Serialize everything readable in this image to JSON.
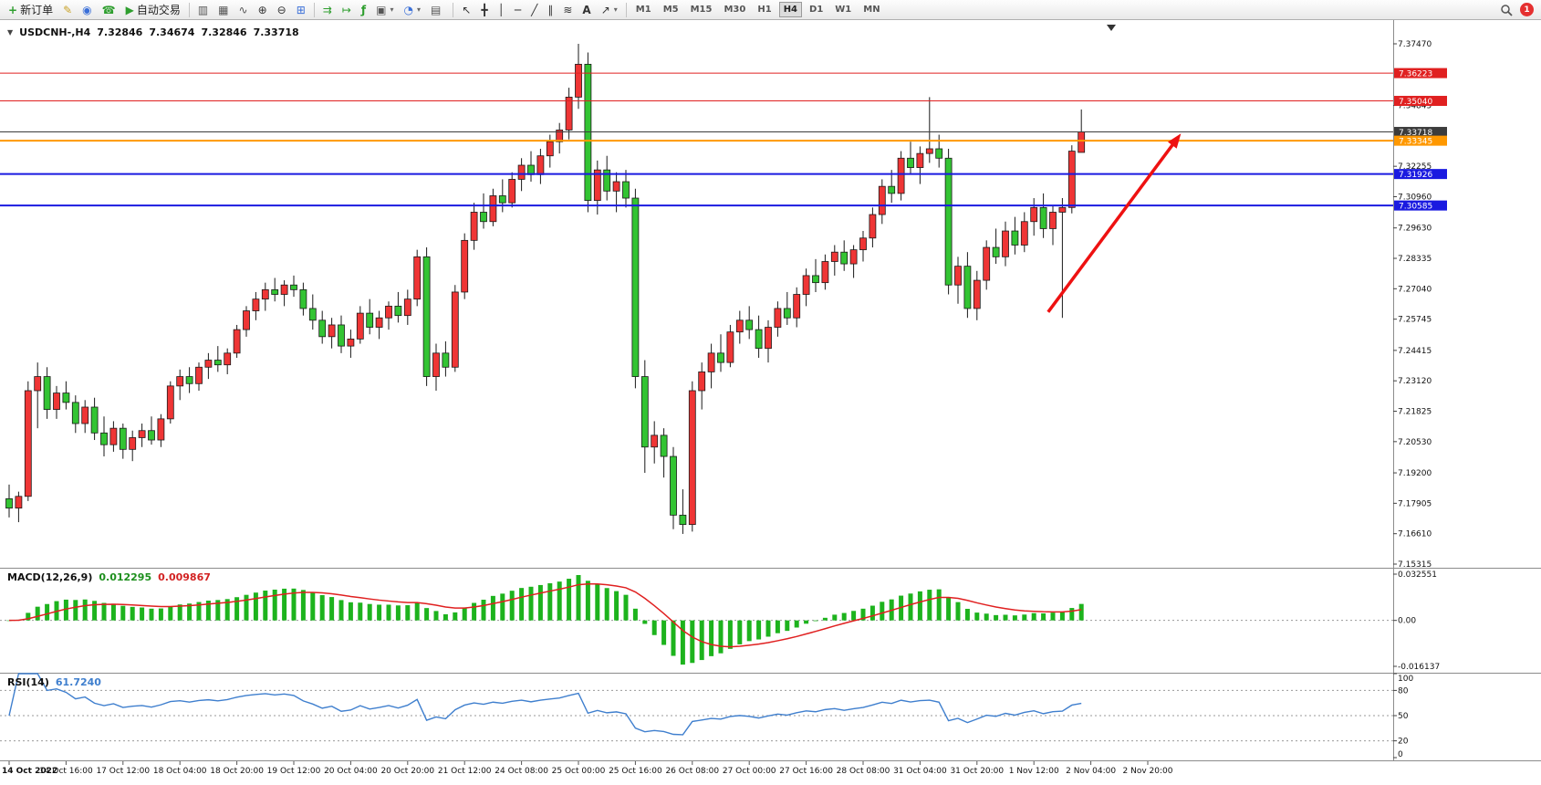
{
  "toolbar": {
    "new_order": "新订单",
    "autotrading": "自动交易",
    "timeframes": [
      "M1",
      "M5",
      "M15",
      "M30",
      "H1",
      "H4",
      "D1",
      "W1",
      "MN"
    ],
    "active_timeframe": "H4",
    "notification_count": "1"
  },
  "icons": {
    "new_order": "+",
    "metaeditor": "✎",
    "community": "◉",
    "support": "☎",
    "autotrading": "▶",
    "bar_chart": "▥",
    "candle_chart": "▦",
    "line_chart": "∿",
    "zoom_in": "⊕",
    "zoom_out": "⊖",
    "tile_windows": "⊞",
    "autoscroll": "⇉",
    "chart_shift": "↦",
    "indicators": "ƒ",
    "new_chart": "▣",
    "profiles": "◔",
    "templates": "▤",
    "cursor": "↖",
    "crosshair": "╋",
    "vline": "│",
    "hline": "─",
    "trendline": "╱",
    "channel": "∥",
    "fibonacci": "≋",
    "text_tool": "A",
    "arrows_tool": "↗",
    "dropdown": "▾",
    "chart_menu": "▼"
  },
  "chart": {
    "symbol_period": "USDCNH-,H4",
    "open": "7.32846",
    "high": "7.34674",
    "low": "7.32846",
    "close": "7.33718"
  },
  "indicators": {
    "macd_name": "MACD(12,26,9)",
    "macd_main": "0.012295",
    "macd_signal": "0.009867",
    "rsi_name": "RSI(14)",
    "rsi_value": "61.7240"
  },
  "chart_data": {
    "type": "candlestick",
    "symbol": "USDCNH-",
    "timeframe": "H4",
    "ylim": [
      7.15315,
      7.3747
    ],
    "up_color": "#ef3535",
    "down_color": "#33c433",
    "candles": [
      [
        7.181,
        7.187,
        7.173,
        7.177
      ],
      [
        7.177,
        7.184,
        7.171,
        7.182
      ],
      [
        7.182,
        7.231,
        7.18,
        7.227
      ],
      [
        7.227,
        7.239,
        7.211,
        7.233
      ],
      [
        7.233,
        7.237,
        7.215,
        7.219
      ],
      [
        7.219,
        7.229,
        7.215,
        7.226
      ],
      [
        7.226,
        7.231,
        7.219,
        7.222
      ],
      [
        7.222,
        7.225,
        7.209,
        7.213
      ],
      [
        7.213,
        7.223,
        7.209,
        7.22
      ],
      [
        7.22,
        7.224,
        7.206,
        7.209
      ],
      [
        7.209,
        7.216,
        7.199,
        7.204
      ],
      [
        7.204,
        7.214,
        7.201,
        7.211
      ],
      [
        7.211,
        7.213,
        7.198,
        7.202
      ],
      [
        7.202,
        7.21,
        7.197,
        7.207
      ],
      [
        7.207,
        7.213,
        7.203,
        7.21
      ],
      [
        7.21,
        7.216,
        7.204,
        7.206
      ],
      [
        7.206,
        7.217,
        7.203,
        7.215
      ],
      [
        7.215,
        7.231,
        7.213,
        7.229
      ],
      [
        7.229,
        7.236,
        7.223,
        7.233
      ],
      [
        7.233,
        7.237,
        7.226,
        7.23
      ],
      [
        7.23,
        7.239,
        7.227,
        7.237
      ],
      [
        7.237,
        7.243,
        7.232,
        7.24
      ],
      [
        7.24,
        7.246,
        7.235,
        7.238
      ],
      [
        7.238,
        7.245,
        7.234,
        7.243
      ],
      [
        7.243,
        7.255,
        7.241,
        7.253
      ],
      [
        7.253,
        7.263,
        7.25,
        7.261
      ],
      [
        7.261,
        7.269,
        7.257,
        7.266
      ],
      [
        7.266,
        7.273,
        7.261,
        7.27
      ],
      [
        7.27,
        7.275,
        7.265,
        7.268
      ],
      [
        7.268,
        7.274,
        7.263,
        7.272
      ],
      [
        7.272,
        7.276,
        7.267,
        7.27
      ],
      [
        7.27,
        7.273,
        7.259,
        7.262
      ],
      [
        7.262,
        7.268,
        7.253,
        7.257
      ],
      [
        7.257,
        7.261,
        7.247,
        7.25
      ],
      [
        7.25,
        7.258,
        7.245,
        7.255
      ],
      [
        7.255,
        7.259,
        7.243,
        7.246
      ],
      [
        7.246,
        7.253,
        7.241,
        7.249
      ],
      [
        7.249,
        7.263,
        7.247,
        7.26
      ],
      [
        7.26,
        7.266,
        7.251,
        7.254
      ],
      [
        7.254,
        7.261,
        7.249,
        7.258
      ],
      [
        7.258,
        7.265,
        7.253,
        7.263
      ],
      [
        7.263,
        7.269,
        7.256,
        7.259
      ],
      [
        7.259,
        7.27,
        7.255,
        7.266
      ],
      [
        7.266,
        7.287,
        7.263,
        7.284
      ],
      [
        7.284,
        7.288,
        7.229,
        7.233
      ],
      [
        7.233,
        7.247,
        7.227,
        7.243
      ],
      [
        7.243,
        7.248,
        7.233,
        7.237
      ],
      [
        7.237,
        7.272,
        7.235,
        7.269
      ],
      [
        7.269,
        7.294,
        7.266,
        7.291
      ],
      [
        7.291,
        7.307,
        7.287,
        7.303
      ],
      [
        7.303,
        7.311,
        7.296,
        7.299
      ],
      [
        7.299,
        7.313,
        7.297,
        7.31
      ],
      [
        7.31,
        7.317,
        7.303,
        7.307
      ],
      [
        7.307,
        7.32,
        7.305,
        7.317
      ],
      [
        7.317,
        7.326,
        7.312,
        7.323
      ],
      [
        7.323,
        7.329,
        7.316,
        7.319
      ],
      [
        7.319,
        7.33,
        7.315,
        7.327
      ],
      [
        7.327,
        7.336,
        7.322,
        7.333
      ],
      [
        7.333,
        7.341,
        7.328,
        7.338
      ],
      [
        7.338,
        7.356,
        7.334,
        7.352
      ],
      [
        7.352,
        7.3747,
        7.347,
        7.366
      ],
      [
        7.366,
        7.371,
        7.303,
        7.308
      ],
      [
        7.308,
        7.325,
        7.302,
        7.321
      ],
      [
        7.321,
        7.327,
        7.308,
        7.312
      ],
      [
        7.312,
        7.32,
        7.303,
        7.316
      ],
      [
        7.316,
        7.321,
        7.305,
        7.309
      ],
      [
        7.309,
        7.313,
        7.228,
        7.233
      ],
      [
        7.233,
        7.24,
        7.192,
        7.203
      ],
      [
        7.203,
        7.214,
        7.196,
        7.208
      ],
      [
        7.208,
        7.211,
        7.19,
        7.199
      ],
      [
        7.199,
        7.203,
        7.168,
        7.174
      ],
      [
        7.174,
        7.185,
        7.166,
        7.17
      ],
      [
        7.17,
        7.231,
        7.167,
        7.227
      ],
      [
        7.227,
        7.239,
        7.219,
        7.235
      ],
      [
        7.235,
        7.247,
        7.228,
        7.243
      ],
      [
        7.243,
        7.251,
        7.235,
        7.239
      ],
      [
        7.239,
        7.255,
        7.237,
        7.252
      ],
      [
        7.252,
        7.261,
        7.247,
        7.257
      ],
      [
        7.257,
        7.263,
        7.249,
        7.253
      ],
      [
        7.253,
        7.259,
        7.241,
        7.245
      ],
      [
        7.245,
        7.257,
        7.239,
        7.254
      ],
      [
        7.254,
        7.265,
        7.25,
        7.262
      ],
      [
        7.262,
        7.269,
        7.255,
        7.258
      ],
      [
        7.258,
        7.271,
        7.254,
        7.268
      ],
      [
        7.268,
        7.279,
        7.263,
        7.276
      ],
      [
        7.276,
        7.283,
        7.269,
        7.273
      ],
      [
        7.273,
        7.285,
        7.27,
        7.282
      ],
      [
        7.282,
        7.289,
        7.276,
        7.286
      ],
      [
        7.286,
        7.291,
        7.278,
        7.281
      ],
      [
        7.281,
        7.289,
        7.275,
        7.287
      ],
      [
        7.287,
        7.295,
        7.282,
        7.292
      ],
      [
        7.292,
        7.305,
        7.288,
        7.302
      ],
      [
        7.302,
        7.317,
        7.298,
        7.314
      ],
      [
        7.314,
        7.321,
        7.307,
        7.311
      ],
      [
        7.311,
        7.329,
        7.308,
        7.326
      ],
      [
        7.326,
        7.333,
        7.319,
        7.322
      ],
      [
        7.322,
        7.331,
        7.315,
        7.328
      ],
      [
        7.328,
        7.352,
        7.324,
        7.33
      ],
      [
        7.33,
        7.336,
        7.322,
        7.326
      ],
      [
        7.326,
        7.33,
        7.268,
        7.272
      ],
      [
        7.272,
        7.284,
        7.264,
        7.28
      ],
      [
        7.28,
        7.286,
        7.258,
        7.262
      ],
      [
        7.262,
        7.278,
        7.257,
        7.274
      ],
      [
        7.274,
        7.291,
        7.27,
        7.288
      ],
      [
        7.288,
        7.296,
        7.281,
        7.284
      ],
      [
        7.284,
        7.299,
        7.28,
        7.295
      ],
      [
        7.295,
        7.301,
        7.285,
        7.289
      ],
      [
        7.289,
        7.303,
        7.286,
        7.299
      ],
      [
        7.299,
        7.309,
        7.293,
        7.305
      ],
      [
        7.305,
        7.311,
        7.292,
        7.296
      ],
      [
        7.296,
        7.306,
        7.289,
        7.303
      ],
      [
        7.303,
        7.309,
        7.258,
        7.305
      ],
      [
        7.305,
        7.3315,
        7.3025,
        7.329
      ],
      [
        7.32846,
        7.34674,
        7.32846,
        7.33718
      ]
    ],
    "price_ticks": [
      "7.37470",
      "7.34845",
      "7.32255",
      "7.30960",
      "7.29630",
      "7.28335",
      "7.27040",
      "7.25745",
      "7.24415",
      "7.23120",
      "7.21825",
      "7.20530",
      "7.19200",
      "7.17905",
      "7.16610",
      "7.15315"
    ],
    "hlines": [
      {
        "price": 7.36223,
        "label": "7.36223",
        "color": "#e02020",
        "width": 1,
        "role": "resistance"
      },
      {
        "price": 7.3504,
        "label": "7.35040",
        "color": "#e02020",
        "width": 1,
        "role": "resistance"
      },
      {
        "price": 7.33718,
        "label": "7.33718",
        "color": "#3c3c3c",
        "width": 1,
        "role": "current-price"
      },
      {
        "price": 7.33345,
        "label": "7.33345",
        "color": "#ff9800",
        "width": 2,
        "role": "level"
      },
      {
        "price": 7.31926,
        "label": "7.31926",
        "color": "#1a1ae0",
        "width": 2,
        "role": "support"
      },
      {
        "price": 7.30585,
        "label": "7.30585",
        "color": "#1a1ae0",
        "width": 2,
        "role": "support"
      }
    ],
    "time_labels": [
      "14 Oct 2022",
      "14 Oct 16:00",
      "17 Oct 12:00",
      "18 Oct 04:00",
      "18 Oct 20:00",
      "19 Oct 12:00",
      "20 Oct 04:00",
      "20 Oct 20:00",
      "21 Oct 12:00",
      "24 Oct 08:00",
      "25 Oct 00:00",
      "25 Oct 16:00",
      "26 Oct 08:00",
      "27 Oct 00:00",
      "27 Oct 16:00",
      "28 Oct 08:00",
      "31 Oct 04:00",
      "31 Oct 20:00",
      "1 Nov 12:00",
      "2 Nov 04:00",
      "2 Nov 20:00"
    ],
    "label_every": 6,
    "macd": {
      "params": [
        12,
        26,
        9
      ],
      "main": "0.012295",
      "signal": "0.009867",
      "axis_labels": [
        "0.032551",
        "0.00",
        "-0.016137"
      ],
      "hist_color": "#1db31d",
      "signal_color": "#e02020"
    },
    "rsi": {
      "period": 14,
      "value": "61.7240",
      "levels": [
        80,
        50,
        20
      ],
      "axis_labels": [
        "100",
        "80",
        "50",
        "20",
        "0"
      ],
      "line_color": "#3f7fce"
    },
    "annotations": [
      {
        "type": "arrow",
        "from": {
          "bar": 109.5,
          "price": 7.2605
        },
        "to": {
          "bar": 123.5,
          "price": 7.3365
        },
        "color": "#ee1111",
        "width": 3.5
      }
    ]
  }
}
